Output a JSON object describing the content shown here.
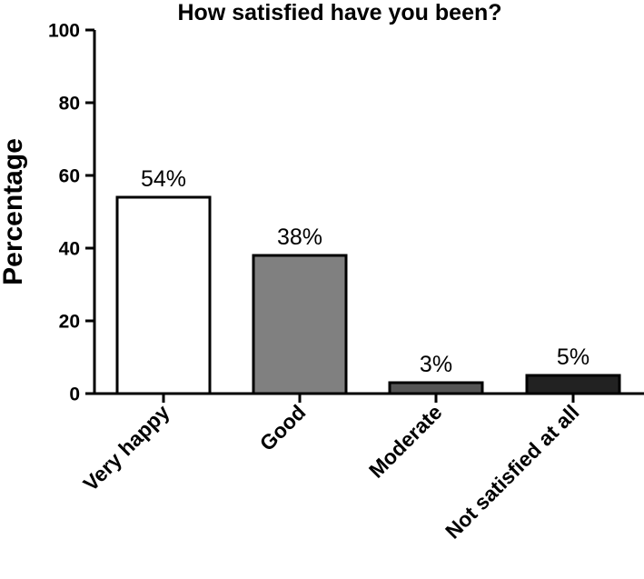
{
  "chart_data": {
    "type": "bar",
    "title": "How satisfied have you been?",
    "xlabel": "",
    "ylabel": "Percentage",
    "categories": [
      "Very happy",
      "Good",
      "Moderate",
      "Not satisfied at all"
    ],
    "values": [
      54,
      38,
      3,
      5
    ],
    "data_labels": [
      "54%",
      "38%",
      "3%",
      "5%"
    ],
    "bar_colors": [
      "#ffffff",
      "#808080",
      "#555555",
      "#222222"
    ],
    "ylim": [
      0,
      100
    ],
    "yticks": [
      0,
      20,
      40,
      60,
      80,
      100
    ],
    "grid": false,
    "legend": "none"
  }
}
